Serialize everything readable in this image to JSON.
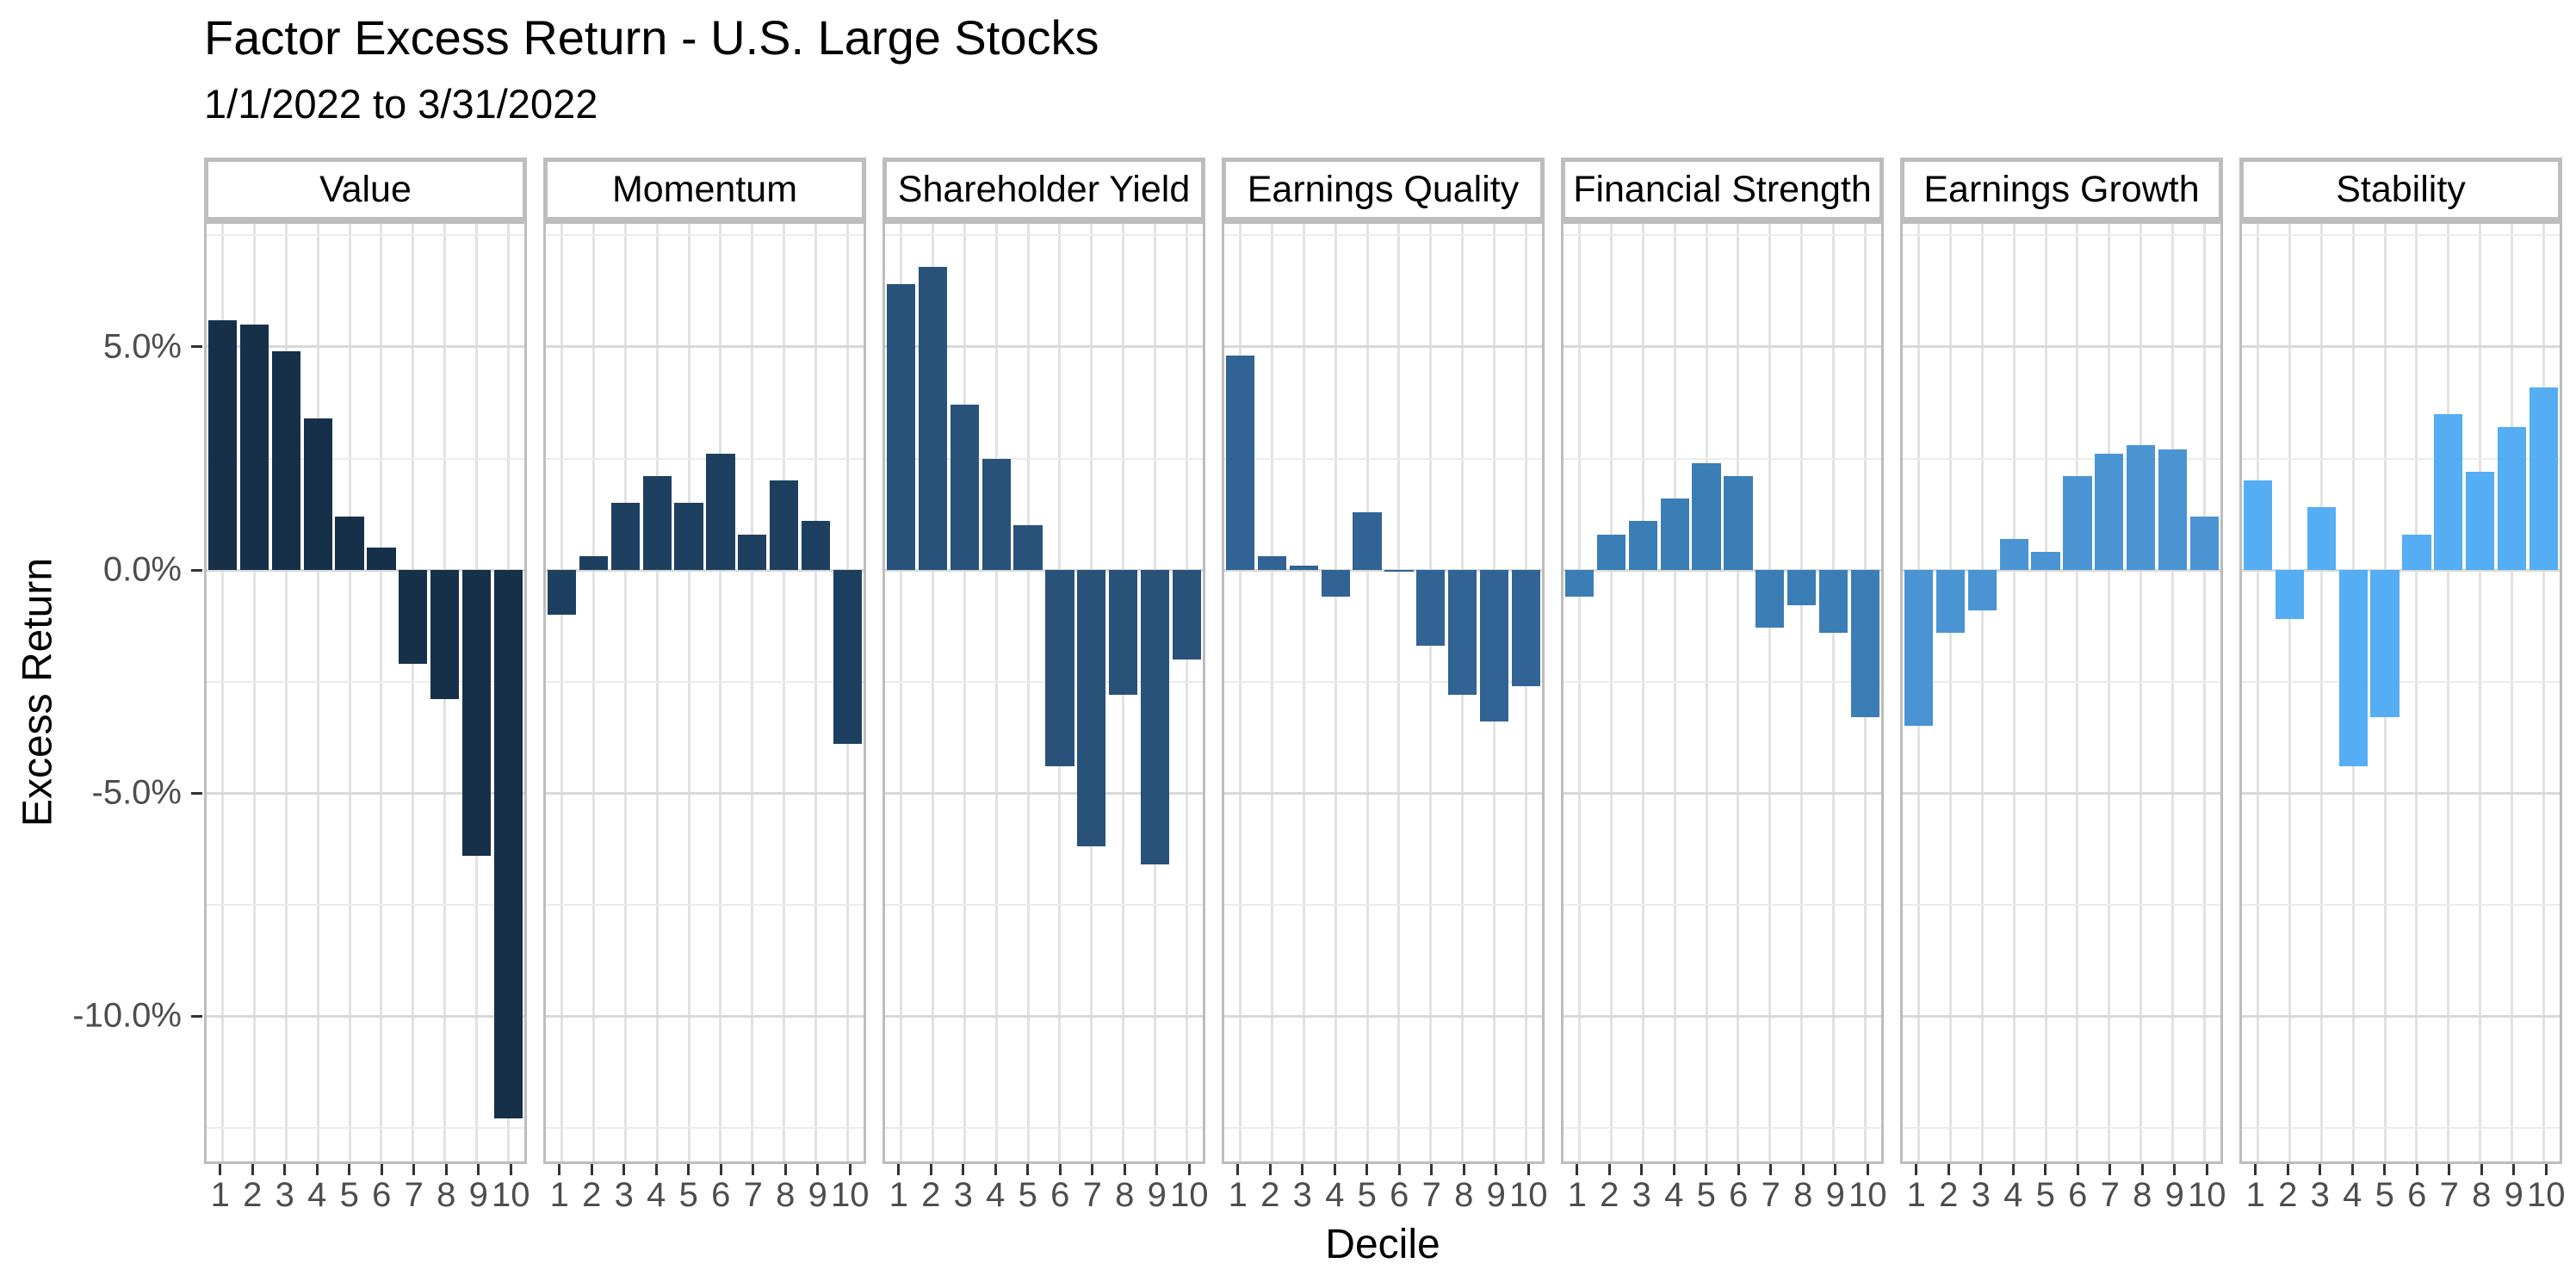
{
  "title": "Factor Excess Return - U.S. Large Stocks",
  "subtitle": "1/1/2022 to 3/31/2022",
  "axes": {
    "x_label": "Decile",
    "y_label": "Excess Return",
    "y_ticks": [
      {
        "label": "5.0%",
        "value": 5
      },
      {
        "label": "0.0%",
        "value": 0
      },
      {
        "label": "-5.0%",
        "value": -5
      },
      {
        "label": "-10.0%",
        "value": -10
      }
    ]
  },
  "chart_data": {
    "type": "bar",
    "title": "Factor Excess Return - U.S. Large Stocks",
    "subtitle": "1/1/2022 to 3/31/2022",
    "xlabel": "Decile",
    "ylabel": "Excess Return",
    "value_unit": "percent",
    "categories": [
      "1",
      "2",
      "3",
      "4",
      "5",
      "6",
      "7",
      "8",
      "9",
      "10"
    ],
    "ylim": [
      -13.26,
      7.76
    ],
    "gridlines": {
      "grid": "on",
      "major_y": [
        5,
        0,
        -5,
        -10
      ],
      "minor_y": [
        7.5,
        2.5,
        -2.5,
        -7.5,
        -12.5
      ]
    },
    "legend_position": "none",
    "facet_layout": "one panel per factor, shared y axis",
    "series": [
      {
        "name": "Value",
        "color": "#16304a",
        "values": [
          5.6,
          5.5,
          4.9,
          3.4,
          1.2,
          0.5,
          -2.1,
          -2.9,
          -6.4,
          -12.3
        ]
      },
      {
        "name": "Momentum",
        "color": "#1e4060",
        "values": [
          -1.0,
          0.3,
          1.5,
          2.1,
          1.5,
          2.6,
          0.8,
          2.0,
          1.1,
          -3.9
        ]
      },
      {
        "name": "Shareholder Yield",
        "color": "#28527a",
        "values": [
          6.4,
          6.8,
          3.7,
          2.5,
          1.0,
          -4.4,
          -6.2,
          -2.8,
          -6.6,
          -2.0
        ]
      },
      {
        "name": "Earnings Quality",
        "color": "#316394",
        "values": [
          4.8,
          0.3,
          0.1,
          -0.6,
          1.3,
          0.0,
          -1.7,
          -2.8,
          -3.4,
          -2.6
        ]
      },
      {
        "name": "Financial Strength",
        "color": "#3b7eb5",
        "values": [
          -0.6,
          0.8,
          1.1,
          1.6,
          2.4,
          2.1,
          -1.3,
          -0.8,
          -1.4,
          -3.3
        ]
      },
      {
        "name": "Earnings Growth",
        "color": "#4a94d4",
        "values": [
          -3.5,
          -1.4,
          -0.9,
          0.7,
          0.4,
          2.1,
          2.6,
          2.8,
          2.7,
          1.2
        ]
      },
      {
        "name": "Stability",
        "color": "#55adf4",
        "values": [
          2.0,
          -1.1,
          1.4,
          -4.4,
          -3.3,
          0.8,
          3.5,
          2.2,
          3.2,
          4.1
        ]
      }
    ]
  }
}
